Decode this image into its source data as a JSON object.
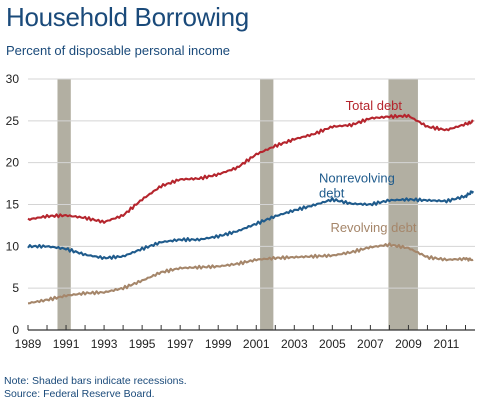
{
  "title": "Household Borrowing",
  "subtitle": "Percent of disposable personal income",
  "note": "Note: Shaded bars indicate recessions.",
  "source": "Source: Federal Reserve Board.",
  "chart_data": {
    "type": "line",
    "ylim": [
      0,
      30
    ],
    "yticks": [
      0,
      5,
      10,
      15,
      20,
      25,
      30
    ],
    "xlim": [
      1989,
      2012.5
    ],
    "xticks": [
      1989,
      1991,
      1993,
      1995,
      1997,
      1999,
      2001,
      2003,
      2005,
      2007,
      2009,
      2011
    ],
    "grid": "horizontal",
    "recessions": [
      [
        1990.55,
        1991.25
      ],
      [
        2001.2,
        2001.9
      ],
      [
        2007.95,
        2009.5
      ]
    ],
    "recession_color": "#b2afa2",
    "series": [
      {
        "name": "Total debt",
        "color": "#b5252d",
        "label_lines": [
          "Total debt"
        ],
        "x": [
          1989,
          1990,
          1991,
          1992,
          1993,
          1994,
          1995,
          1996,
          1997,
          1998,
          1999,
          2000,
          2001,
          2002,
          2003,
          2004,
          2005,
          2006,
          2007,
          2008,
          2009,
          2010,
          2011,
          2012,
          2012.4
        ],
        "values": [
          13.2,
          13.6,
          13.7,
          13.4,
          12.9,
          13.7,
          15.6,
          17.2,
          18.0,
          18.1,
          18.6,
          19.4,
          21.0,
          22.0,
          22.8,
          23.4,
          24.3,
          24.5,
          25.3,
          25.5,
          25.6,
          24.3,
          23.9,
          24.6,
          24.9
        ]
      },
      {
        "name": "Nonrevolving debt",
        "color": "#1f5b8c",
        "label_lines": [
          "Nonrevolving",
          "debt"
        ],
        "x": [
          1989,
          1990,
          1991,
          1992,
          1993,
          1994,
          1995,
          1996,
          1997,
          1998,
          1999,
          2000,
          2001,
          2002,
          2003,
          2004,
          2005,
          2006,
          2007,
          2008,
          2009,
          2010,
          2011,
          2012,
          2012.4
        ],
        "values": [
          10.0,
          10.0,
          9.7,
          9.0,
          8.6,
          8.8,
          9.7,
          10.5,
          10.8,
          10.8,
          11.2,
          11.8,
          12.7,
          13.6,
          14.3,
          14.9,
          15.6,
          15.1,
          15.0,
          15.5,
          15.6,
          15.5,
          15.4,
          16.0,
          16.6
        ]
      },
      {
        "name": "Revolving debt",
        "color": "#a5866a",
        "label_lines": [
          "Revolving debt"
        ],
        "x": [
          1989,
          1990,
          1991,
          1992,
          1993,
          1994,
          1995,
          1996,
          1997,
          1998,
          1999,
          2000,
          2001,
          2002,
          2003,
          2004,
          2005,
          2006,
          2007,
          2008,
          2009,
          2010,
          2011,
          2012,
          2012.4
        ],
        "values": [
          3.2,
          3.6,
          4.1,
          4.4,
          4.5,
          5.0,
          5.9,
          6.9,
          7.4,
          7.5,
          7.6,
          7.9,
          8.4,
          8.6,
          8.7,
          8.8,
          8.9,
          9.3,
          9.9,
          10.2,
          9.8,
          8.7,
          8.4,
          8.5,
          8.4
        ]
      }
    ]
  }
}
